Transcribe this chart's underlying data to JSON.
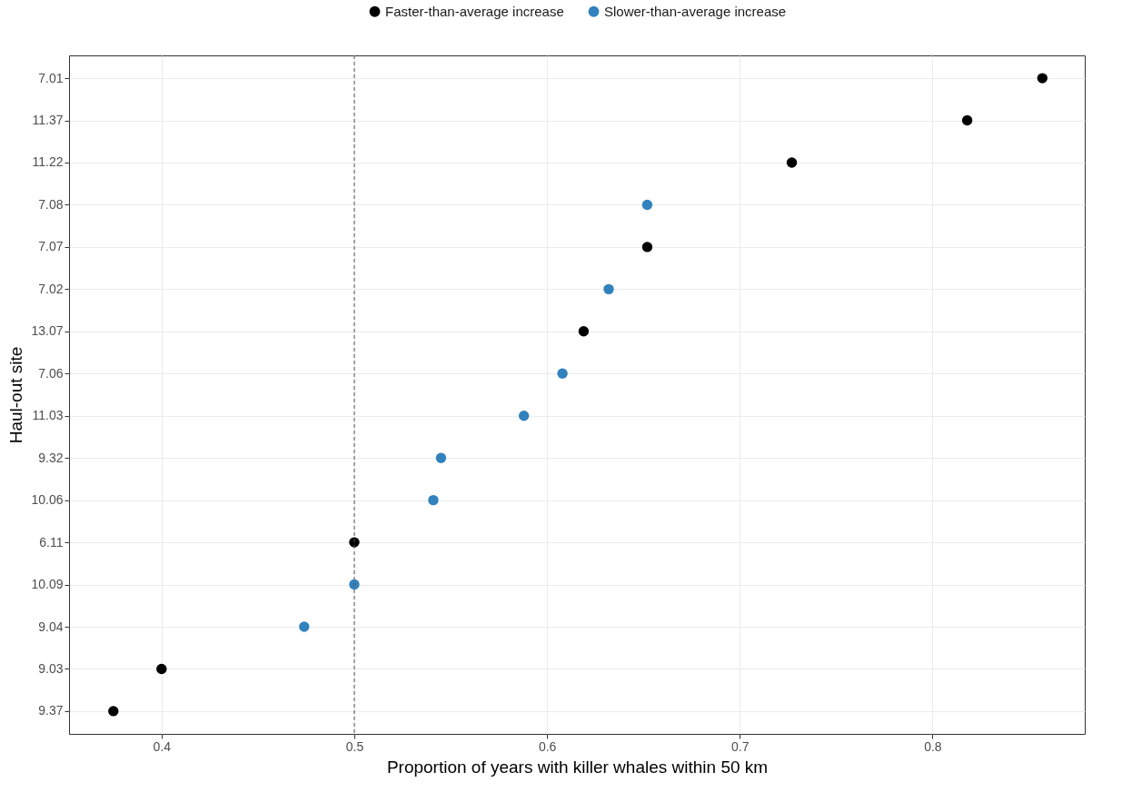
{
  "chart_data": {
    "type": "scatter",
    "orientation": "horizontal",
    "xlabel": "Proportion of years with killer whales within 50 km",
    "ylabel": "Haul-out site",
    "categories": [
      "7.01",
      "11.37",
      "11.22",
      "7.08",
      "7.07",
      "7.02",
      "13.07",
      "7.06",
      "11.03",
      "9.32",
      "10.06",
      "6.11",
      "10.09",
      "9.04",
      "9.03",
      "9.37"
    ],
    "series": [
      {
        "name": "Faster-than-average increase",
        "color": "#000000",
        "values": [
          0.857,
          0.818,
          0.727,
          null,
          0.652,
          null,
          0.619,
          null,
          null,
          null,
          null,
          0.5,
          null,
          null,
          0.4,
          0.375
        ]
      },
      {
        "name": "Slower-than-average increase",
        "color": "#3182bd",
        "values": [
          null,
          null,
          null,
          0.652,
          null,
          0.632,
          null,
          0.608,
          0.588,
          0.545,
          0.541,
          null,
          0.5,
          0.474,
          null,
          null
        ]
      }
    ],
    "xlim": [
      0.352,
      0.879
    ],
    "xticks": [
      0.4,
      0.5,
      0.6,
      0.7,
      0.8
    ],
    "ref_lines": [
      {
        "axis": "x",
        "value": 0.5,
        "line_style": "dashed",
        "color": "#555555"
      }
    ],
    "grid": true,
    "legend": "top",
    "marker": "circle"
  }
}
